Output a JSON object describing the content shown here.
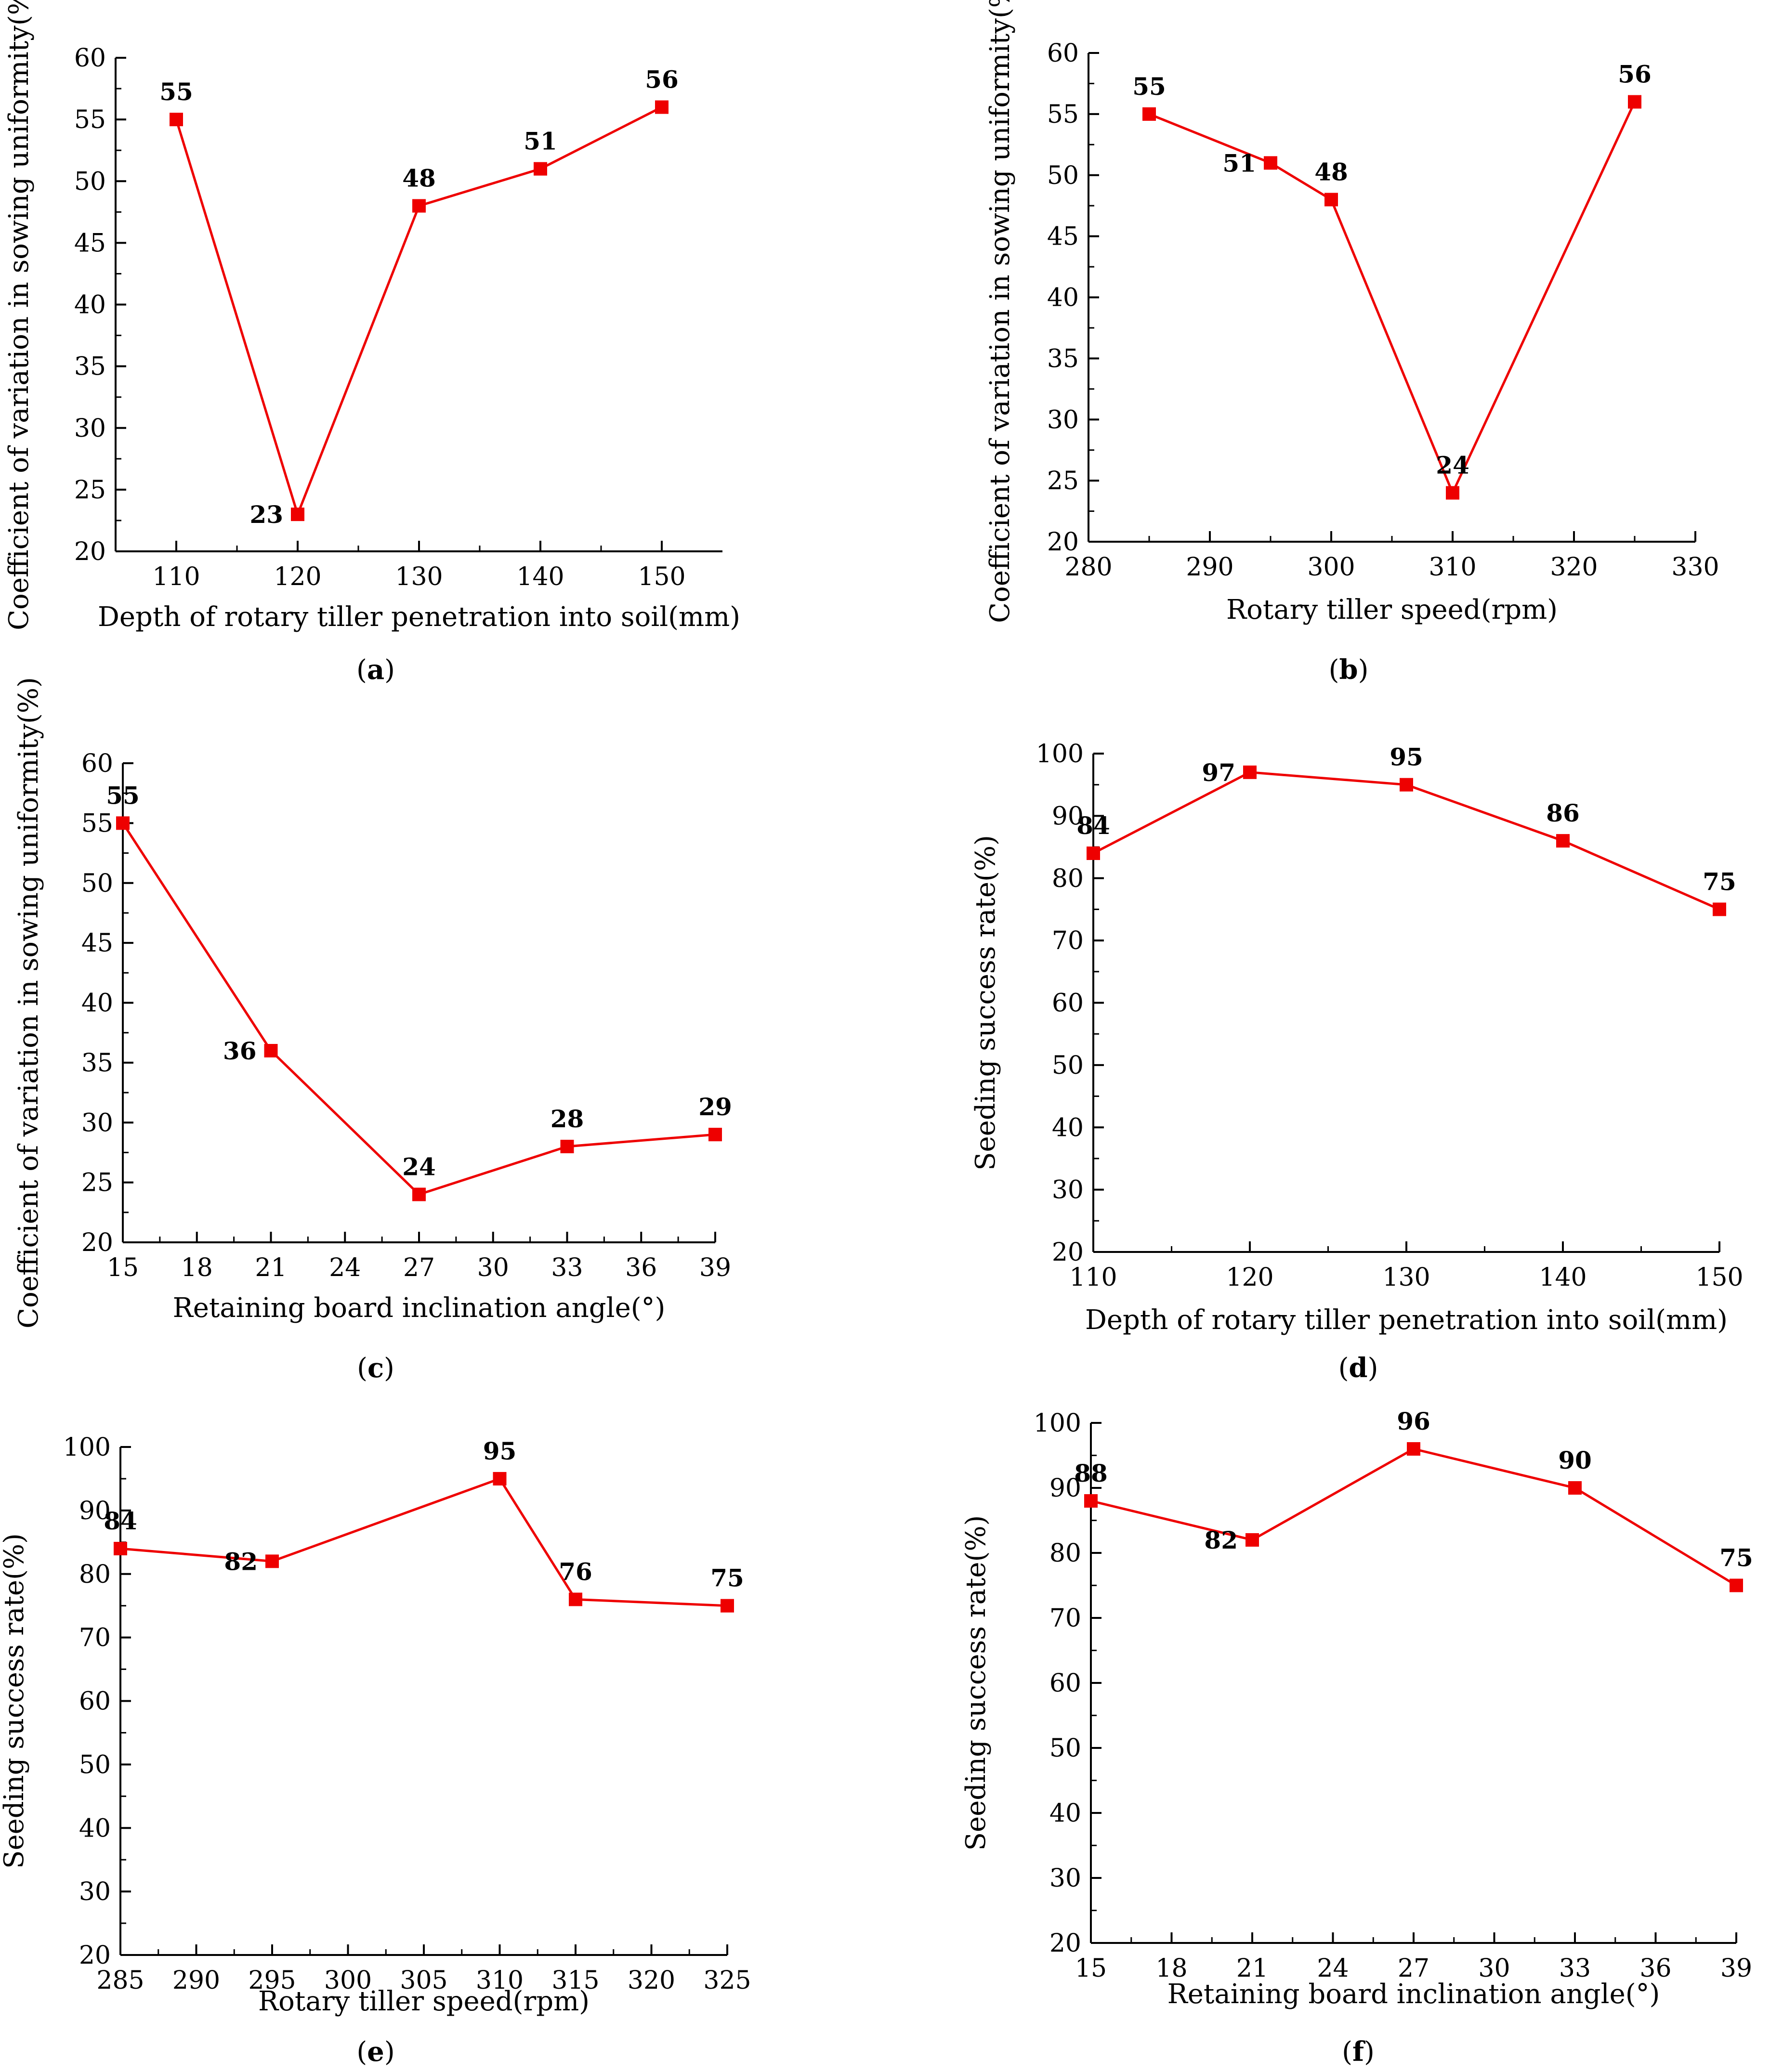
{
  "figure": {
    "line_color": "#ee0000",
    "charts": [
      {
        "id": "a",
        "caption": "a",
        "title": "",
        "xlabel": "Depth of rotary tiller penetration into soil(mm)",
        "ylabel": "Coefficient of variation in sowing uniformity(%)",
        "xlim": [
          105,
          155
        ],
        "ylim": [
          20,
          60
        ],
        "xticks": [
          110,
          120,
          130,
          140,
          150
        ],
        "yticks": [
          20,
          25,
          30,
          35,
          40,
          45,
          50,
          55,
          60
        ],
        "x": [
          110,
          120,
          130,
          140,
          150
        ],
        "y": [
          55,
          23,
          48,
          51,
          56
        ],
        "labels": [
          "55",
          "23",
          "48",
          "51",
          "56"
        ],
        "label_pos": [
          "above",
          "left",
          "above",
          "above",
          "above"
        ]
      },
      {
        "id": "b",
        "caption": "b",
        "title": "",
        "xlabel": "Rotary tiller speed(rpm)",
        "ylabel": "Coefficient of variation in sowing uniformity(%)",
        "xlim": [
          280,
          330
        ],
        "ylim": [
          20,
          60
        ],
        "xticks": [
          280,
          290,
          300,
          310,
          320,
          330
        ],
        "yticks": [
          20,
          25,
          30,
          35,
          40,
          45,
          50,
          55,
          60
        ],
        "x": [
          285,
          295,
          300,
          310,
          325
        ],
        "y": [
          55,
          51,
          48,
          24,
          56
        ],
        "labels": [
          "55",
          "51",
          "48",
          "24",
          "56"
        ],
        "label_pos": [
          "above",
          "left",
          "above",
          "above",
          "above"
        ]
      },
      {
        "id": "c",
        "caption": "c",
        "title": "",
        "xlabel": "Retaining board inclination angle(°)",
        "ylabel": "Coefficient of variation in sowing uniformity(%)",
        "xlim": [
          15,
          39
        ],
        "ylim": [
          20,
          60
        ],
        "xticks": [
          15,
          18,
          21,
          24,
          27,
          30,
          33,
          36,
          39
        ],
        "yticks": [
          20,
          25,
          30,
          35,
          40,
          45,
          50,
          55,
          60
        ],
        "x": [
          15,
          21,
          27,
          33,
          39
        ],
        "y": [
          55,
          36,
          24,
          28,
          29
        ],
        "labels": [
          "55",
          "36",
          "24",
          "28",
          "29"
        ],
        "label_pos": [
          "above",
          "left",
          "above",
          "above",
          "above"
        ]
      },
      {
        "id": "d",
        "caption": "d",
        "title": "",
        "xlabel": "Depth of rotary tiller penetration into soil(mm)",
        "ylabel": "Seeding success rate(%)",
        "xlim": [
          110,
          150
        ],
        "ylim": [
          20,
          100
        ],
        "xticks": [
          110,
          120,
          130,
          140,
          150
        ],
        "yticks": [
          20,
          30,
          40,
          50,
          60,
          70,
          80,
          90,
          100
        ],
        "x": [
          110,
          120,
          130,
          140,
          150
        ],
        "y": [
          84,
          97,
          95,
          86,
          75
        ],
        "labels": [
          "84",
          "97",
          "95",
          "86",
          "75"
        ],
        "label_pos": [
          "above",
          "left",
          "above",
          "above",
          "above"
        ]
      },
      {
        "id": "e",
        "caption": "e",
        "title": "",
        "xlabel": "Rotary tiller speed(rpm)",
        "ylabel": "Seeding success rate(%)",
        "xlim": [
          285,
          325
        ],
        "ylim": [
          20,
          100
        ],
        "xticks": [
          285,
          290,
          295,
          300,
          305,
          310,
          315,
          320,
          325
        ],
        "yticks": [
          20,
          30,
          40,
          50,
          60,
          70,
          80,
          90,
          100
        ],
        "x": [
          285,
          295,
          310,
          315,
          325
        ],
        "y": [
          84,
          82,
          95,
          76,
          75
        ],
        "labels": [
          "84",
          "82",
          "95",
          "76",
          "75"
        ],
        "label_pos": [
          "above",
          "left",
          "above",
          "above",
          "above"
        ]
      },
      {
        "id": "f",
        "caption": "f",
        "title": "",
        "xlabel": "Retaining board inclination angle(°)",
        "ylabel": "Seeding success rate(%)",
        "xlim": [
          15,
          39
        ],
        "ylim": [
          20,
          100
        ],
        "xticks": [
          15,
          18,
          21,
          24,
          27,
          30,
          33,
          36,
          39
        ],
        "yticks": [
          20,
          30,
          40,
          50,
          60,
          70,
          80,
          90,
          100
        ],
        "x": [
          15,
          21,
          27,
          33,
          39
        ],
        "y": [
          88,
          82,
          96,
          90,
          75
        ],
        "labels": [
          "88",
          "82",
          "96",
          "90",
          "75"
        ],
        "label_pos": [
          "above",
          "left",
          "above",
          "above",
          "above"
        ]
      }
    ]
  },
  "chart_data": [
    {
      "type": "line",
      "title": "",
      "xlabel": "Depth of rotary tiller penetration into soil(mm)",
      "ylabel": "Coefficient of variation in sowing uniformity(%)",
      "x": [
        110,
        120,
        130,
        140,
        150
      ],
      "series": [
        {
          "name": "",
          "values": [
            55,
            23,
            48,
            51,
            56
          ]
        }
      ],
      "xlim": [
        105,
        155
      ],
      "ylim": [
        20,
        60
      ]
    },
    {
      "type": "line",
      "title": "",
      "xlabel": "Rotary tiller speed(rpm)",
      "ylabel": "Coefficient of variation in sowing uniformity(%)",
      "x": [
        285,
        295,
        300,
        310,
        325
      ],
      "series": [
        {
          "name": "",
          "values": [
            55,
            51,
            48,
            24,
            56
          ]
        }
      ],
      "xlim": [
        280,
        330
      ],
      "ylim": [
        20,
        60
      ]
    },
    {
      "type": "line",
      "title": "",
      "xlabel": "Retaining board inclination angle(°)",
      "ylabel": "Coefficient of variation in sowing uniformity(%)",
      "x": [
        15,
        21,
        27,
        33,
        39
      ],
      "series": [
        {
          "name": "",
          "values": [
            55,
            36,
            24,
            28,
            29
          ]
        }
      ],
      "xlim": [
        15,
        39
      ],
      "ylim": [
        20,
        60
      ]
    },
    {
      "type": "line",
      "title": "",
      "xlabel": "Depth of rotary tiller penetration into soil(mm)",
      "ylabel": "Seeding success rate(%)",
      "x": [
        110,
        120,
        130,
        140,
        150
      ],
      "series": [
        {
          "name": "",
          "values": [
            84,
            97,
            95,
            86,
            75
          ]
        }
      ],
      "xlim": [
        110,
        150
      ],
      "ylim": [
        20,
        100
      ]
    },
    {
      "type": "line",
      "title": "",
      "xlabel": "Rotary tiller speed(rpm)",
      "ylabel": "Seeding success rate(%)",
      "x": [
        285,
        295,
        310,
        315,
        325
      ],
      "series": [
        {
          "name": "",
          "values": [
            84,
            82,
            95,
            76,
            75
          ]
        }
      ],
      "xlim": [
        285,
        325
      ],
      "ylim": [
        20,
        100
      ]
    },
    {
      "type": "line",
      "title": "",
      "xlabel": "Retaining board inclination angle(°)",
      "ylabel": "Seeding success rate(%)",
      "x": [
        15,
        21,
        27,
        33,
        39
      ],
      "series": [
        {
          "name": "",
          "values": [
            88,
            82,
            96,
            90,
            75
          ]
        }
      ],
      "xlim": [
        15,
        39
      ],
      "ylim": [
        20,
        100
      ]
    }
  ]
}
